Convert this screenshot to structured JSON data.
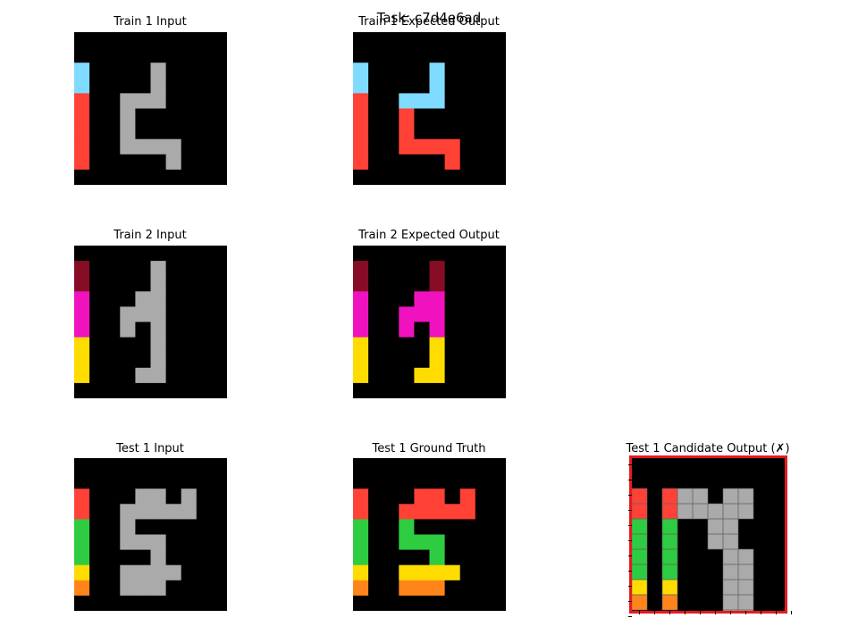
{
  "figure": {
    "suptitle": "Task: c7d4e6ad"
  },
  "palette": {
    "0": "#000000",
    "1": "#1e93ff",
    "2": "#ff4136",
    "3": "#2ecc40",
    "4": "#ffdc00",
    "5": "#aaaaaa",
    "6": "#f012be",
    "7": "#ff851b",
    "8": "#7fdbff",
    "9": "#870c25"
  },
  "panels": [
    {
      "id": "train-1-input",
      "title": "Train 1 Input",
      "grid": [
        "0000000000",
        "0000000000",
        "8000050000",
        "8000050000",
        "2005550000",
        "2005000000",
        "2005000000",
        "2005555000",
        "2000005000",
        "0000000000"
      ]
    },
    {
      "id": "train-1-output",
      "title": "Train 1 Expected Output",
      "grid": [
        "0000000000",
        "0000000000",
        "8000080000",
        "8000080000",
        "2008880000",
        "2002000000",
        "2002000000",
        "2002222000",
        "2000002000",
        "0000000000"
      ]
    },
    {
      "id": "train-2-input",
      "title": "Train 2 Input",
      "grid": [
        "0000000000",
        "9000050000",
        "9000050000",
        "6000550000",
        "6005550000",
        "6005050000",
        "4000050000",
        "4000050000",
        "4000550000",
        "0000000000"
      ]
    },
    {
      "id": "train-2-output",
      "title": "Train 2 Expected Output",
      "grid": [
        "0000000000",
        "9000090000",
        "9000090000",
        "6000660000",
        "6006660000",
        "6006060000",
        "4000040000",
        "4000040000",
        "4000440000",
        "0000000000"
      ]
    },
    {
      "id": "test-1-input",
      "title": "Test 1 Input",
      "grid": [
        "0000000000",
        "0000000000",
        "2000550500",
        "2005555500",
        "3005000000",
        "3005550000",
        "3000050000",
        "4005555000",
        "7005550000",
        "0000000000"
      ]
    },
    {
      "id": "test-1-ground-truth",
      "title": "Test 1 Ground Truth",
      "grid": [
        "0000000000",
        "0000000000",
        "2000220200",
        "2002222200",
        "3003000000",
        "3003330000",
        "3000030000",
        "4004444000",
        "7007770000",
        "0000000000"
      ]
    },
    {
      "id": "test-1-candidate",
      "title": "Test 1 Candidate Output (✗)",
      "grid": [
        "0000000000",
        "0000000000",
        "2025505500",
        "2025555500",
        "3030055000",
        "3030055000",
        "3030005500",
        "3030005500",
        "4040005500",
        "7070005500",
        "0000005500",
        "0000000000"
      ]
    }
  ]
}
